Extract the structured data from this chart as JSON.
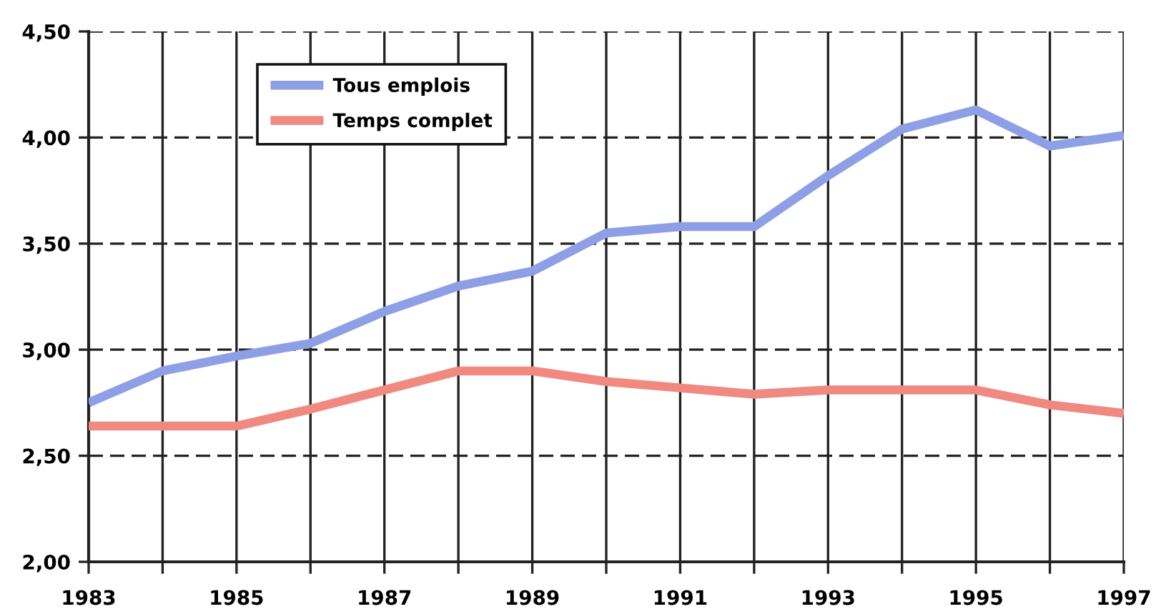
{
  "chart_data": {
    "type": "line",
    "x": [
      1983,
      1984,
      1985,
      1986,
      1987,
      1988,
      1989,
      1990,
      1991,
      1992,
      1993,
      1994,
      1995,
      1996,
      1997
    ],
    "series": [
      {
        "name": "Tous emplois",
        "color": "#8f9fe6",
        "values": [
          2.75,
          2.9,
          2.97,
          3.03,
          3.18,
          3.3,
          3.37,
          3.55,
          3.58,
          3.58,
          3.82,
          4.04,
          4.13,
          3.96,
          4.01
        ]
      },
      {
        "name": "Temps complet",
        "color": "#f08a80",
        "values": [
          2.64,
          2.64,
          2.64,
          2.72,
          2.81,
          2.9,
          2.9,
          2.85,
          2.82,
          2.79,
          2.81,
          2.81,
          2.81,
          2.74,
          2.7
        ]
      }
    ],
    "xlim": [
      1983,
      1997
    ],
    "xticks": [
      1983,
      {
        "value": 1984,
        "label": null
      },
      1985,
      {
        "value": 1986,
        "label": null
      },
      1987,
      {
        "value": 1988,
        "label": null
      },
      1989,
      {
        "value": 1990,
        "label": null
      },
      1991,
      {
        "value": 1992,
        "label": null
      },
      1993,
      {
        "value": 1994,
        "label": null
      },
      1995,
      {
        "value": 1996,
        "label": null
      },
      1997
    ],
    "ylim": [
      2.0,
      4.5
    ],
    "yticks": [
      {
        "value": 2.0,
        "label": "2,00"
      },
      {
        "value": 2.5,
        "label": "2,50"
      },
      {
        "value": 3.0,
        "label": "3,00"
      },
      {
        "value": 3.5,
        "label": "3,50"
      },
      {
        "value": 4.0,
        "label": "4,00"
      },
      {
        "value": 4.5,
        "label": "4,50"
      }
    ],
    "grid": true,
    "legend": "top left",
    "marker": "none",
    "line_style": "solid"
  }
}
